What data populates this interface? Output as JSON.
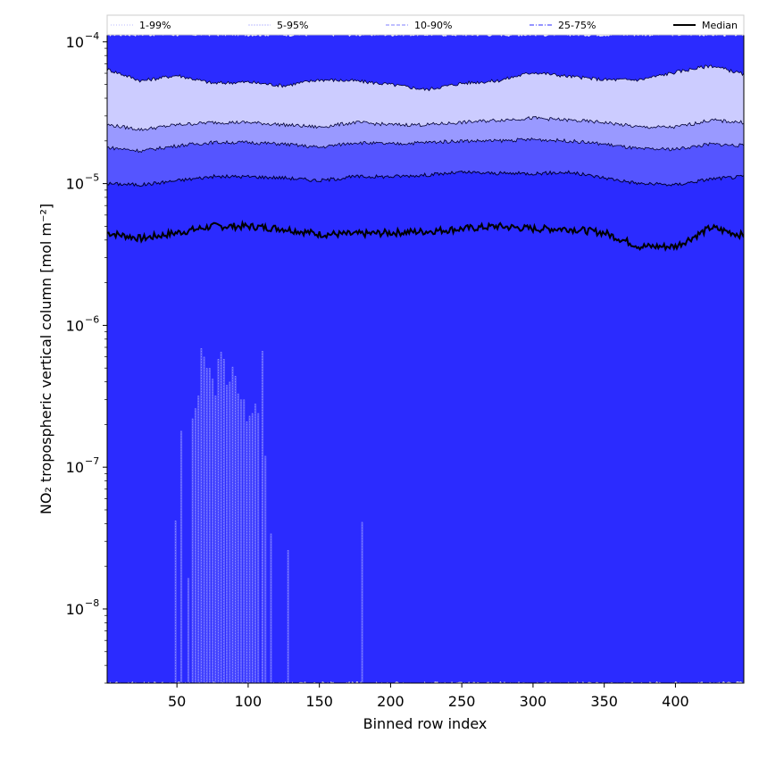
{
  "chart_data": {
    "type": "area",
    "title": "",
    "xlabel": "Binned row index",
    "ylabel": "NO₂ tropospheric vertical column [mol m⁻²]",
    "y_scale": "log",
    "xlim": [
      1,
      448
    ],
    "ylim": [
      3e-09,
      0.000112
    ],
    "grid": false,
    "legend_position": "top",
    "x_ticks": [
      {
        "value": 50,
        "label": "50"
      },
      {
        "value": 100,
        "label": "100"
      },
      {
        "value": 150,
        "label": "150"
      },
      {
        "value": 200,
        "label": "200"
      },
      {
        "value": 250,
        "label": "250"
      },
      {
        "value": 300,
        "label": "300"
      },
      {
        "value": 350,
        "label": "350"
      },
      {
        "value": 400,
        "label": "400"
      }
    ],
    "y_ticks": [
      {
        "value": 1e-08,
        "base": "10",
        "exp": "−8"
      },
      {
        "value": 1e-07,
        "base": "10",
        "exp": "−7"
      },
      {
        "value": 1e-06,
        "base": "10",
        "exp": "−6"
      },
      {
        "value": 1e-05,
        "base": "10",
        "exp": "−5"
      },
      {
        "value": 0.0001,
        "base": "10",
        "exp": "−4"
      }
    ],
    "x": [
      1,
      25,
      50,
      75,
      100,
      125,
      150,
      175,
      200,
      225,
      250,
      275,
      300,
      325,
      350,
      375,
      400,
      425,
      448
    ],
    "bands": [
      {
        "name": "1-99%",
        "color": "#2b2bff",
        "line_style": "dotted",
        "lower": [
          3e-09,
          3e-09,
          3e-09,
          3e-09,
          3e-09,
          3e-09,
          3e-09,
          3e-09,
          3e-09,
          3e-09,
          3e-09,
          3e-09,
          3e-09,
          3e-09,
          3e-09,
          3e-09,
          3e-09,
          3e-09,
          3e-09
        ],
        "upper": [
          0.000112,
          0.000112,
          0.000112,
          0.000112,
          0.000112,
          0.000112,
          0.000112,
          0.000112,
          0.000112,
          0.000112,
          0.000112,
          0.000112,
          0.000112,
          0.000112,
          0.000112,
          0.000112,
          0.000112,
          0.000112,
          0.000112
        ]
      },
      {
        "name": "5-95%",
        "color": "#ccccff",
        "line_style": "thin",
        "lower": [
          1e-05,
          9.8e-06,
          1.05e-05,
          1.12e-05,
          1.12e-05,
          1.1e-05,
          1.05e-05,
          1.12e-05,
          1.12e-05,
          1.15e-05,
          1.2e-05,
          1.18e-05,
          1.18e-05,
          1.2e-05,
          1.1e-05,
          1e-05,
          9.8e-06,
          1.08e-05,
          1.12e-05
        ],
        "upper": [
          6.4e-05,
          5.3e-05,
          5.8e-05,
          5.1e-05,
          5.2e-05,
          4.9e-05,
          5.4e-05,
          5.3e-05,
          5e-05,
          4.6e-05,
          5.1e-05,
          5.3e-05,
          6.1e-05,
          5.7e-05,
          5.4e-05,
          5.4e-05,
          6.1e-05,
          6.8e-05,
          5.9e-05
        ]
      },
      {
        "name": "10-90%",
        "color": "#9999ff",
        "line_style": "dashed",
        "lower": [
          1e-05,
          9.8e-06,
          1.05e-05,
          1.12e-05,
          1.12e-05,
          1.1e-05,
          1.05e-05,
          1.12e-05,
          1.12e-05,
          1.15e-05,
          1.2e-05,
          1.18e-05,
          1.18e-05,
          1.2e-05,
          1.1e-05,
          1e-05,
          9.8e-06,
          1.08e-05,
          1.12e-05
        ],
        "upper": [
          2.6e-05,
          2.4e-05,
          2.6e-05,
          2.7e-05,
          2.7e-05,
          2.6e-05,
          2.5e-05,
          2.7e-05,
          2.6e-05,
          2.6e-05,
          2.7e-05,
          2.8e-05,
          2.9e-05,
          2.8e-05,
          2.7e-05,
          2.5e-05,
          2.5e-05,
          2.8e-05,
          2.7e-05
        ]
      },
      {
        "name": "25-75%",
        "color": "#5555ff",
        "line_style": "dashdot",
        "lower": [
          1e-05,
          9.8e-06,
          1.05e-05,
          1.12e-05,
          1.12e-05,
          1.1e-05,
          1.05e-05,
          1.12e-05,
          1.12e-05,
          1.15e-05,
          1.2e-05,
          1.18e-05,
          1.18e-05,
          1.2e-05,
          1.1e-05,
          1e-05,
          9.8e-06,
          1.08e-05,
          1.12e-05
        ],
        "upper": [
          1.8e-05,
          1.7e-05,
          1.85e-05,
          1.95e-05,
          1.95e-05,
          1.9e-05,
          1.8e-05,
          1.95e-05,
          1.9e-05,
          1.95e-05,
          2e-05,
          2e-05,
          2.05e-05,
          2e-05,
          1.9e-05,
          1.75e-05,
          1.75e-05,
          1.9e-05,
          1.85e-05
        ]
      }
    ],
    "median": {
      "name": "Median",
      "color": "#000000",
      "values": [
        4.5e-06,
        4.1e-06,
        4.5e-06,
        5e-06,
        5e-06,
        4.8e-06,
        4.4e-06,
        4.4e-06,
        4.5e-06,
        4.6e-06,
        4.8e-06,
        5e-06,
        4.8e-06,
        4.8e-06,
        4.5e-06,
        3.6e-06,
        3.6e-06,
        4.9e-06,
        4.3e-06
      ]
    },
    "lower_spikes": [
      {
        "x": 49,
        "y": 4.2e-08
      },
      {
        "x": 53,
        "y": 1.8e-07
      },
      {
        "x": 58,
        "y": 1.65e-08
      },
      {
        "x": 61,
        "y": 2.2e-07
      },
      {
        "x": 63,
        "y": 2.6e-07
      },
      {
        "x": 65,
        "y": 3.2e-07
      },
      {
        "x": 67,
        "y": 6.9e-07
      },
      {
        "x": 69,
        "y": 6e-07
      },
      {
        "x": 71,
        "y": 5e-07
      },
      {
        "x": 73,
        "y": 5e-07
      },
      {
        "x": 75,
        "y": 4.2e-07
      },
      {
        "x": 77,
        "y": 3.2e-07
      },
      {
        "x": 79,
        "y": 5.8e-07
      },
      {
        "x": 81,
        "y": 6.5e-07
      },
      {
        "x": 83,
        "y": 5.8e-07
      },
      {
        "x": 85,
        "y": 3.8e-07
      },
      {
        "x": 87,
        "y": 4e-07
      },
      {
        "x": 89,
        "y": 5.1e-07
      },
      {
        "x": 91,
        "y": 4.4e-07
      },
      {
        "x": 93,
        "y": 3.3e-07
      },
      {
        "x": 95,
        "y": 3e-07
      },
      {
        "x": 97,
        "y": 3e-07
      },
      {
        "x": 99,
        "y": 2.1e-07
      },
      {
        "x": 101,
        "y": 2.3e-07
      },
      {
        "x": 103,
        "y": 2.4e-07
      },
      {
        "x": 105,
        "y": 2.8e-07
      },
      {
        "x": 107,
        "y": 2.4e-07
      },
      {
        "x": 110,
        "y": 6.6e-07
      },
      {
        "x": 112,
        "y": 1.2e-07
      },
      {
        "x": 116,
        "y": 3.4e-08
      },
      {
        "x": 128,
        "y": 2.6e-08
      },
      {
        "x": 180,
        "y": 4.1e-08
      }
    ]
  }
}
